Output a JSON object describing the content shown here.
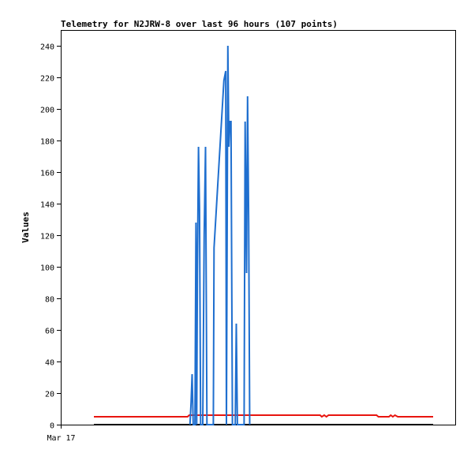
{
  "chart_data": {
    "type": "line",
    "title": "Telemetry for N2JRW-8 over last 96 hours (107 points)",
    "ylabel": "Values",
    "xlabel": "",
    "x_tick_labels": [
      "Mar 17"
    ],
    "ylim": [
      0,
      250
    ],
    "yticks": [
      0,
      20,
      40,
      60,
      80,
      100,
      120,
      140,
      160,
      180,
      200,
      220,
      240
    ],
    "xlim": [
      0,
      96
    ],
    "grid": false,
    "legend": "none",
    "colors": {
      "blue": "#1f6fcf",
      "red": "#e8150f",
      "black": "#000000"
    },
    "series": [
      {
        "color": "#1f6fcf",
        "points": [
          [
            27.2,
            0
          ],
          [
            27.5,
            14
          ],
          [
            27.8,
            32
          ],
          [
            28.1,
            0
          ],
          [
            28.6,
            0
          ],
          [
            28.9,
            128
          ],
          [
            29.1,
            0
          ],
          [
            29.3,
            96
          ],
          [
            29.6,
            176
          ],
          [
            29.9,
            136
          ],
          [
            30.2,
            0
          ],
          [
            30.8,
            0
          ],
          [
            31.2,
            120
          ],
          [
            31.6,
            176
          ],
          [
            32.0,
            0
          ],
          [
            33.8,
            0
          ],
          [
            34.0,
            112
          ],
          [
            36.8,
            218
          ],
          [
            37.3,
            224
          ],
          [
            37.5,
            0
          ],
          [
            37.9,
            240
          ],
          [
            38.2,
            176
          ],
          [
            38.5,
            192
          ],
          [
            38.8,
            192
          ],
          [
            39.2,
            0
          ],
          [
            40.0,
            0
          ],
          [
            40.3,
            64
          ],
          [
            40.6,
            0
          ],
          [
            40.9,
            0
          ],
          [
            42.5,
            0
          ],
          [
            42.8,
            192
          ],
          [
            43.2,
            96
          ],
          [
            43.5,
            208
          ],
          [
            43.8,
            128
          ],
          [
            44.1,
            0
          ]
        ]
      },
      {
        "color": "#e8150f",
        "points": [
          [
            0,
            5
          ],
          [
            26.5,
            5
          ],
          [
            27,
            6
          ],
          [
            64,
            6
          ],
          [
            64.5,
            5
          ],
          [
            65.2,
            6
          ],
          [
            65.8,
            5
          ],
          [
            66.4,
            6
          ],
          [
            80,
            6
          ],
          [
            80.5,
            5
          ],
          [
            83.5,
            5
          ],
          [
            84,
            6
          ],
          [
            84.6,
            5
          ],
          [
            85.2,
            6
          ],
          [
            86,
            5
          ],
          [
            96,
            5
          ]
        ]
      },
      {
        "color": "#000000",
        "points": [
          [
            0,
            0
          ],
          [
            96,
            0
          ]
        ]
      }
    ]
  }
}
